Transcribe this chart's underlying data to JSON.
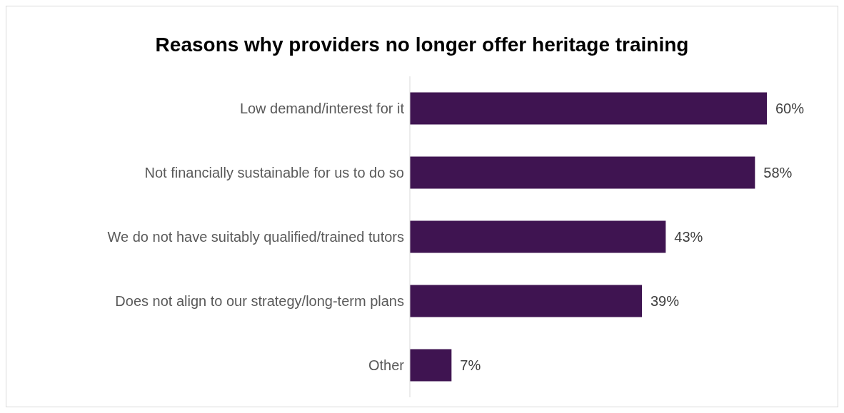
{
  "chart_data": {
    "type": "bar",
    "orientation": "horizontal",
    "title": "Reasons why providers no longer offer heritage training",
    "categories": [
      "Low demand/interest for it",
      "Not financially sustainable for us to do so",
      "We do not have suitably qualified/trained tutors",
      "Does not align to our strategy/long-term plans",
      "Other"
    ],
    "values": [
      60,
      58,
      43,
      39,
      7
    ],
    "value_labels": [
      "60%",
      "58%",
      "43%",
      "39%",
      "7%"
    ],
    "color": "#3f1451"
  }
}
